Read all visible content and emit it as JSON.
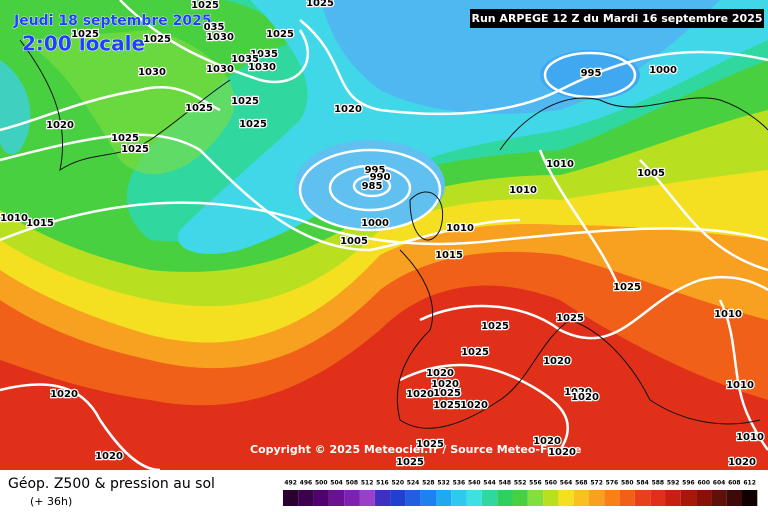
{
  "header": {
    "date": "Jeudi 18 septembre 2025",
    "time": "2:00 locale",
    "run": "Run ARPEGE 12 Z du Mardi 16 septembre 2025"
  },
  "copyright": "Copyright © 2025 Meteociel.fr / Source Meteo-France",
  "footer": {
    "title": "Géop. Z500 & pression au sol",
    "lead": "(+ 36h)"
  },
  "legend": {
    "labels": [
      "492",
      "496",
      "500",
      "504",
      "508",
      "512",
      "516",
      "520",
      "524",
      "528",
      "532",
      "536",
      "540",
      "544",
      "548",
      "552",
      "556",
      "560",
      "564",
      "568",
      "572",
      "576",
      "580",
      "584",
      "588",
      "592",
      "596",
      "600",
      "604",
      "608",
      "612"
    ]
  },
  "isobar_labels": [
    "1025",
    "1025",
    "1025",
    "1025",
    "035",
    "1030",
    "1035",
    "1035",
    "1030",
    "1030",
    "1030",
    "1025",
    "1025",
    "1025",
    "1025",
    "1020",
    "1025",
    "1025",
    "1020",
    "995",
    "1000",
    "995",
    "990",
    "985",
    "1010",
    "1010",
    "1005",
    "1000",
    "1005",
    "1010",
    "1015",
    "1015",
    "1010",
    "1025",
    "1025",
    "1025",
    "1010",
    "1025",
    "1020",
    "1020",
    "1020",
    "1025",
    "1020",
    "1025",
    "1020",
    "1020",
    "1020",
    "1010",
    "1020",
    "1010",
    "1020",
    "1025",
    "1020",
    "1020",
    "1025",
    "1020"
  ]
}
